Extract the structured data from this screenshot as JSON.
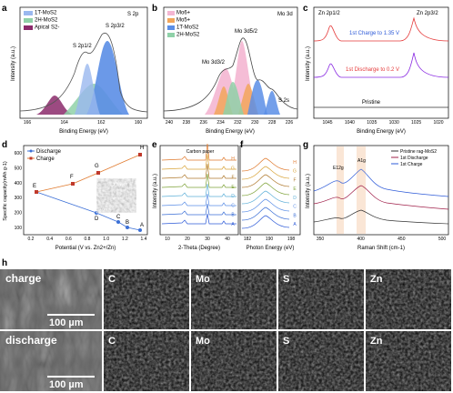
{
  "panels": {
    "a": {
      "label": "a",
      "title": "S 2p",
      "legend": [
        "1T-MoS2",
        "2H-MoS2",
        "Apical S2-"
      ],
      "peaks": [
        "S 2p1/2",
        "S 2p3/2"
      ],
      "x_label": "Binding Energy (eV)",
      "y_label": "Intensity (a.u.)",
      "xticks": [
        "166",
        "164",
        "162",
        "160"
      ]
    },
    "b": {
      "label": "b",
      "title": "Mo 3d",
      "legend": [
        "Mo6+",
        "Mo5+",
        "1T-MoS2",
        "2H-MoS2"
      ],
      "peaks": [
        "Mo 3d3/2",
        "Mo 3d5/2",
        "S 2s"
      ],
      "x_label": "Binding Energy (eV)",
      "xticks": [
        "240",
        "238",
        "236",
        "234",
        "232",
        "230",
        "228",
        "226"
      ]
    },
    "c": {
      "label": "c",
      "peaks": [
        "Zn 2p1/2",
        "Zn 2p3/2"
      ],
      "curves": [
        "1st Charge to 1.35 V",
        "1st Discharge to 0.2 V",
        "Pristine"
      ],
      "x_label": "Binding Energy (eV)",
      "y_label": "Intensity (a.u.)",
      "xticks": [
        "1045",
        "1040",
        "1035",
        "1030",
        "1025",
        "1020"
      ]
    },
    "d": {
      "label": "d",
      "legend": [
        "Discharge",
        "Charge"
      ],
      "x_label": "Potential (V vs. Zn2+/Zn)",
      "y_label": "Specific capacity(mAh g-1)",
      "xticks": [
        "0.2",
        "0.4",
        "0.6",
        "0.8",
        "1.0",
        "1.2",
        "1.4"
      ],
      "yticks": [
        "600",
        "500",
        "400",
        "300",
        "200",
        "100"
      ],
      "points": [
        "E",
        "F",
        "G",
        "H",
        "D",
        "C",
        "B",
        "A"
      ],
      "inset": [
        "3 layers",
        "1 nm"
      ]
    },
    "e": {
      "label": "e",
      "annotation": "Carbon paper",
      "x_label": "2-Theta (Degree)",
      "y_label": "Intensity (a.u.)",
      "xticks": [
        "10",
        "20",
        "30",
        "40"
      ],
      "curves": [
        "H",
        "G",
        "F",
        "E",
        "D",
        "C",
        "B",
        "A"
      ]
    },
    "f": {
      "label": "f",
      "x_label": "Photon Energy (eV)",
      "xticks": [
        "182",
        "190",
        "198"
      ],
      "curves": [
        "H",
        "G",
        "F",
        "E",
        "D",
        "C",
        "B",
        "A"
      ]
    },
    "g": {
      "label": "g",
      "legend": [
        "Pristine rag-MoS2",
        "1st Discharge",
        "1st Charge"
      ],
      "peaks": [
        "E12g",
        "A1g"
      ],
      "x_label": "Raman Shift (cm-1)",
      "y_label": "Intensity (a.u.)",
      "xticks": [
        "350",
        "400",
        "450",
        "500"
      ]
    },
    "h": {
      "label": "h",
      "rows": [
        "charge",
        "discharge"
      ],
      "columns": [
        "C",
        "Mo",
        "S",
        "Zn"
      ],
      "scale": [
        "100 µm",
        "100 µm"
      ]
    }
  }
}
